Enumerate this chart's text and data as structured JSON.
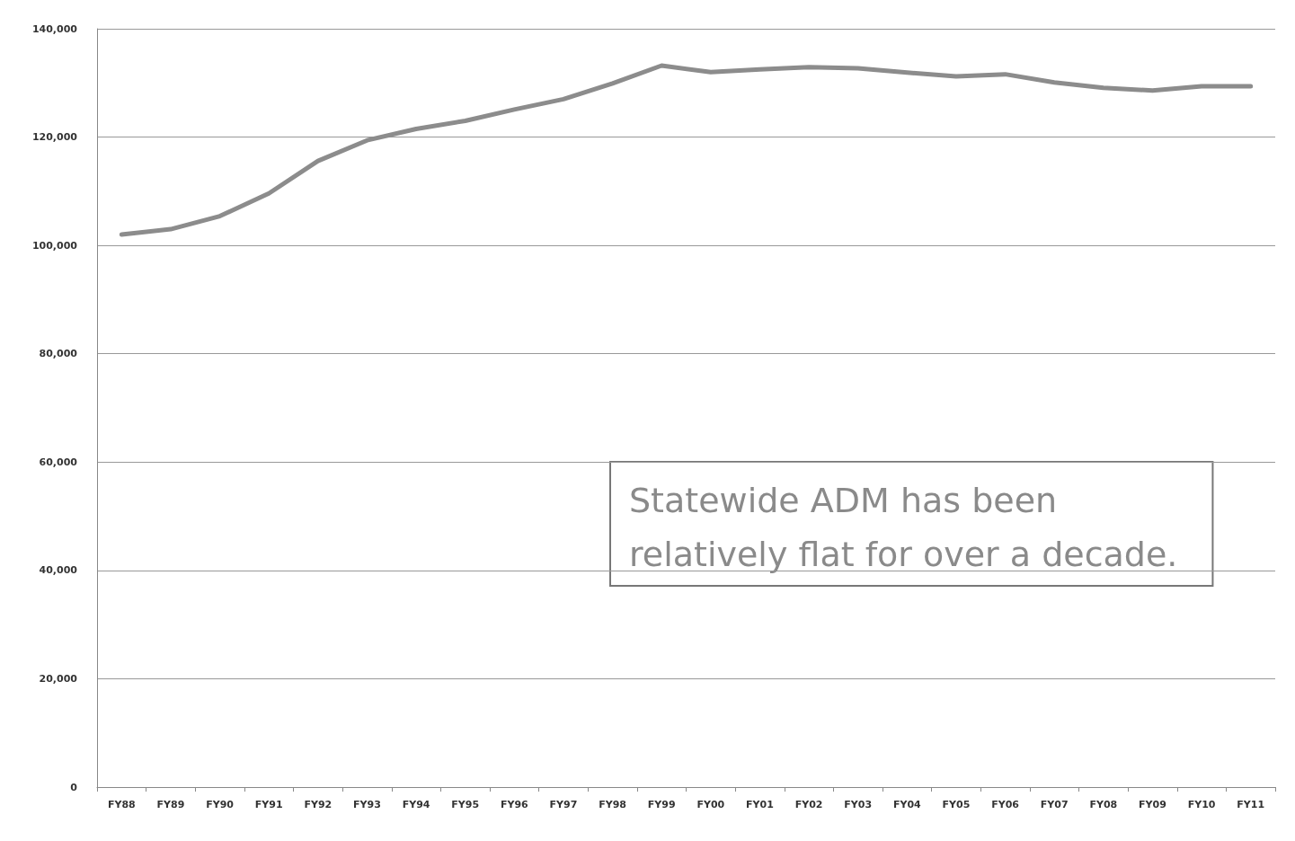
{
  "chart_data": {
    "type": "line",
    "categories": [
      "FY88",
      "FY89",
      "FY90",
      "FY91",
      "FY92",
      "FY93",
      "FY94",
      "FY95",
      "FY96",
      "FY97",
      "FY98",
      "FY99",
      "FY00",
      "FY01",
      "FY02",
      "FY03",
      "FY04",
      "FY05",
      "FY06",
      "FY07",
      "FY08",
      "FY09",
      "FY10",
      "FY11"
    ],
    "series": [
      {
        "color": "#8c8c8c",
        "values": [
          102000,
          103000,
          105400,
          109600,
          115600,
          119400,
          121500,
          123000,
          125100,
          127000,
          129900,
          133200,
          132000,
          132500,
          132900,
          132700,
          131900,
          131200,
          131600,
          130100,
          129100,
          128600,
          129400,
          129400
        ]
      }
    ],
    "ylim": [
      0,
      140000
    ],
    "yticks": [
      {
        "value": 0,
        "label": "0"
      },
      {
        "value": 20000,
        "label": "20,000"
      },
      {
        "value": 40000,
        "label": "40,000"
      },
      {
        "value": 60000,
        "label": "60,000"
      },
      {
        "value": 80000,
        "label": "80,000"
      },
      {
        "value": 100000,
        "label": "100,000"
      },
      {
        "value": 120000,
        "label": "120,000"
      },
      {
        "value": 140000,
        "label": "140,000"
      }
    ],
    "grid": "y",
    "marker": "none",
    "line_style": "solid",
    "annotations": [
      "Statewide ADM has been\nrelatively flat for over a decade."
    ]
  }
}
